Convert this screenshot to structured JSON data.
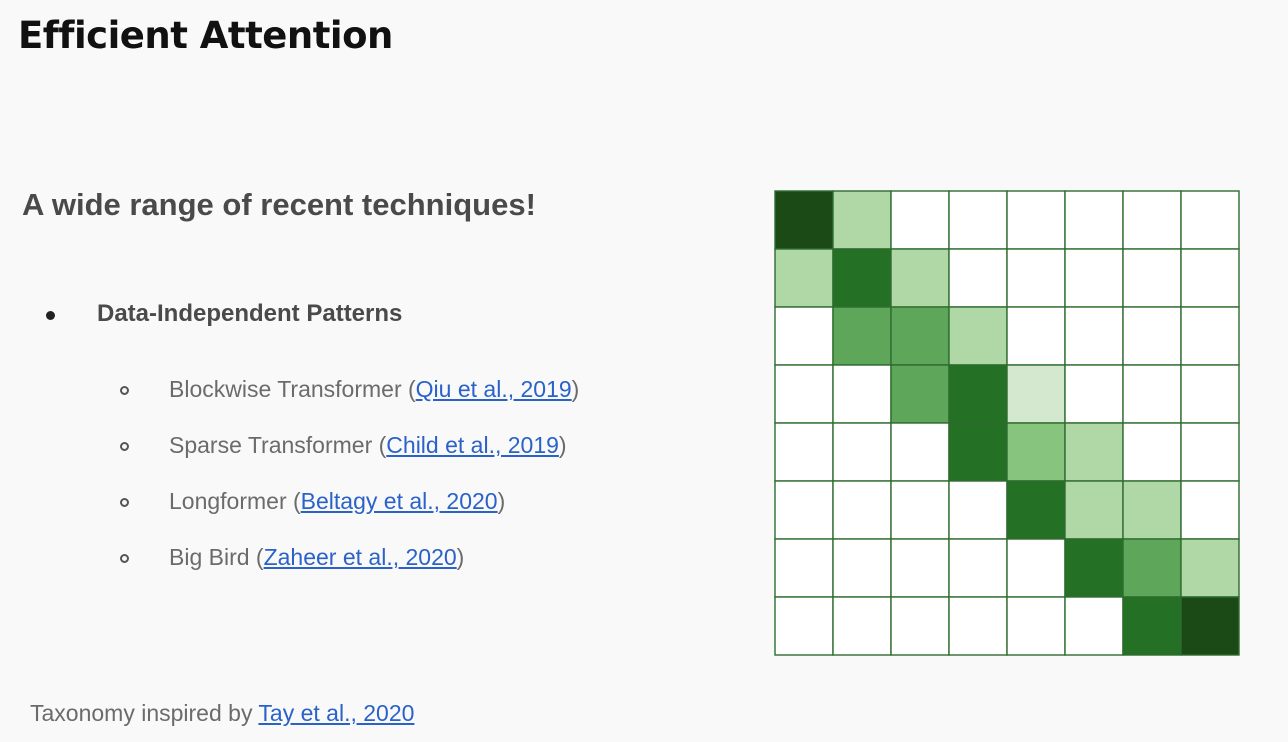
{
  "slide": {
    "title": "Efficient Attention",
    "subtitle": "A wide range of recent techniques!",
    "bullet": "Data-Independent Patterns",
    "items": [
      {
        "text": "Blockwise Transformer (",
        "ref": "Qiu et al., 2019",
        "close": ")"
      },
      {
        "text": "Sparse Transformer (",
        "ref": "Child et al., 2019",
        "close": ")"
      },
      {
        "text": "Longformer (",
        "ref": "Beltagy et al., 2020",
        "close": ")"
      },
      {
        "text": "Big Bird (",
        "ref": "Zaheer et al., 2020",
        "close": ")"
      }
    ],
    "footer_text": "Taxonomy inspired by ",
    "footer_ref": "Tay et al., 2020"
  },
  "colors": {
    "link": "#2a62c9",
    "grid_line": "#2f6b2f",
    "shades": [
      "#ffffff",
      "#d4e8cf",
      "#b0d8a7",
      "#87c57e",
      "#5ea75a",
      "#247024",
      "#1b4a17"
    ]
  },
  "matrix": {
    "rows": 8,
    "cols": 8,
    "intensity": [
      [
        6,
        2,
        0,
        0,
        0,
        0,
        0,
        0
      ],
      [
        2,
        5,
        2,
        0,
        0,
        0,
        0,
        0
      ],
      [
        0,
        4,
        4,
        2,
        0,
        0,
        0,
        0
      ],
      [
        0,
        0,
        4,
        5,
        1,
        0,
        0,
        0
      ],
      [
        0,
        0,
        0,
        5,
        3,
        2,
        0,
        0
      ],
      [
        0,
        0,
        0,
        0,
        5,
        2,
        2,
        0
      ],
      [
        0,
        0,
        0,
        0,
        0,
        5,
        4,
        2
      ],
      [
        0,
        0,
        0,
        0,
        0,
        0,
        5,
        6
      ]
    ]
  }
}
